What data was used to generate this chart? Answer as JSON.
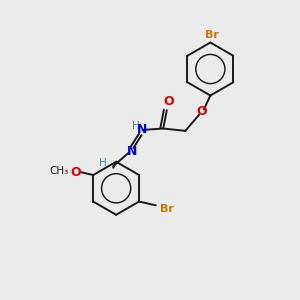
{
  "background_color": "#ebebeb",
  "bond_color": "#1a1a1a",
  "atom_colors": {
    "Br": "#cc7700",
    "O": "#dd0000",
    "N": "#0000cc",
    "H": "#558899",
    "C": "#1a1a1a"
  }
}
